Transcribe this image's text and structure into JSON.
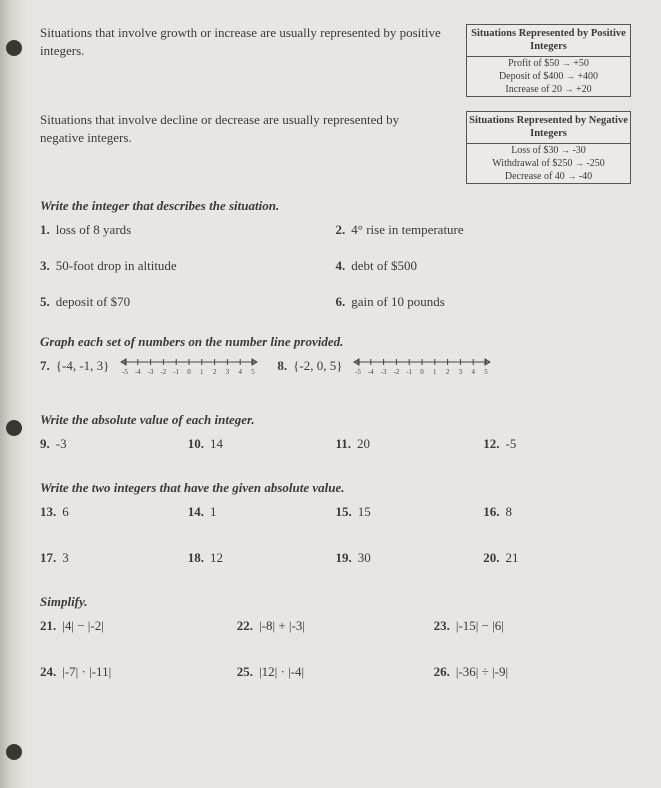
{
  "intro": {
    "posText": "Situations that involve growth or increase are usually represented by positive integers.",
    "negText": "Situations that involve decline or decrease are usually represented by negative integers.",
    "posBox": {
      "header": "Situations Represented by Positive Integers",
      "rows": [
        {
          "label": "Profit of $50",
          "val": "+50"
        },
        {
          "label": "Deposit of $400",
          "val": "+400"
        },
        {
          "label": "Increase of 20",
          "val": "+20"
        }
      ]
    },
    "negBox": {
      "header": "Situations Represented by Negative Integers",
      "rows": [
        {
          "label": "Loss of $30",
          "val": "-30"
        },
        {
          "label": "Withdrawal of $250",
          "val": "-250"
        },
        {
          "label": "Decrease of 40",
          "val": "-40"
        }
      ]
    }
  },
  "sections": {
    "s1": {
      "title": "Write the integer that describes the situation.",
      "items": [
        {
          "n": "1.",
          "t": "loss of 8 yards"
        },
        {
          "n": "2.",
          "t": "4° rise in temperature"
        },
        {
          "n": "3.",
          "t": "50-foot drop in altitude"
        },
        {
          "n": "4.",
          "t": "debt of $500"
        },
        {
          "n": "5.",
          "t": "deposit of $70"
        },
        {
          "n": "6.",
          "t": "gain of 10 pounds"
        }
      ]
    },
    "s2": {
      "title": "Graph each set of numbers on the number line provided.",
      "items": [
        {
          "n": "7.",
          "t": "{-4, -1, 3}"
        },
        {
          "n": "8.",
          "t": "{-2, 0, 5}"
        }
      ],
      "numberline": {
        "min": -5,
        "max": 5,
        "ticks": [
          -5,
          -4,
          -3,
          -2,
          -1,
          0,
          1,
          2,
          3,
          4,
          5
        ]
      }
    },
    "s3": {
      "title": "Write the absolute value of each integer.",
      "items": [
        {
          "n": "9.",
          "t": "-3"
        },
        {
          "n": "10.",
          "t": "14"
        },
        {
          "n": "11.",
          "t": "20"
        },
        {
          "n": "12.",
          "t": "-5"
        }
      ]
    },
    "s4": {
      "title": "Write the two integers that have the given absolute value.",
      "items": [
        {
          "n": "13.",
          "t": "6"
        },
        {
          "n": "14.",
          "t": "1"
        },
        {
          "n": "15.",
          "t": "15"
        },
        {
          "n": "16.",
          "t": "8"
        },
        {
          "n": "17.",
          "t": "3"
        },
        {
          "n": "18.",
          "t": "12"
        },
        {
          "n": "19.",
          "t": "30"
        },
        {
          "n": "20.",
          "t": "21"
        }
      ]
    },
    "s5": {
      "title": "Simplify.",
      "items": [
        {
          "n": "21.",
          "t": "|4| − |-2|"
        },
        {
          "n": "22.",
          "t": "|-8| + |-3|"
        },
        {
          "n": "23.",
          "t": "|-15| − |6|"
        },
        {
          "n": "24.",
          "t": "|-7| · |-11|"
        },
        {
          "n": "25.",
          "t": "|12| · |-4|"
        },
        {
          "n": "26.",
          "t": "|-36| ÷ |-9|"
        }
      ]
    }
  }
}
